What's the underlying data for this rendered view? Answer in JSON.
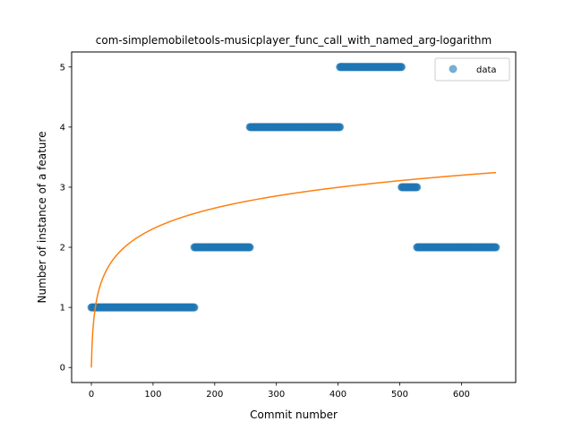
{
  "chart_data": {
    "type": "scatter",
    "title": "com-simplemobiletools-musicplayer_func_call_with_named_arg-logarithm",
    "xlabel": "Commit number",
    "ylabel": "Number of instance of a feature",
    "xlim": [
      -32,
      688
    ],
    "ylim": [
      -0.25,
      5.25
    ],
    "xticks": [
      0,
      100,
      200,
      300,
      400,
      500,
      600
    ],
    "yticks": [
      0,
      1,
      2,
      3,
      4,
      5
    ],
    "legend": {
      "position": "top-right",
      "entries": [
        "data"
      ]
    },
    "grid": false,
    "series": [
      {
        "name": "data",
        "kind": "scatter",
        "color": "#1f77b4",
        "alpha": 0.6,
        "segments": [
          {
            "x_start": 0,
            "x_end": 167,
            "y": 1
          },
          {
            "x_start": 167,
            "x_end": 257,
            "y": 2
          },
          {
            "x_start": 257,
            "x_end": 403,
            "y": 4
          },
          {
            "x_start": 403,
            "x_end": 503,
            "y": 5
          },
          {
            "x_start": 503,
            "x_end": 528,
            "y": 3
          },
          {
            "x_start": 528,
            "x_end": 656,
            "y": 2
          }
        ]
      },
      {
        "kind": "line",
        "color": "#ff7f0e",
        "model": "y = a*ln(x+1)",
        "a": 0.5,
        "x_range": [
          0,
          656
        ]
      }
    ]
  }
}
